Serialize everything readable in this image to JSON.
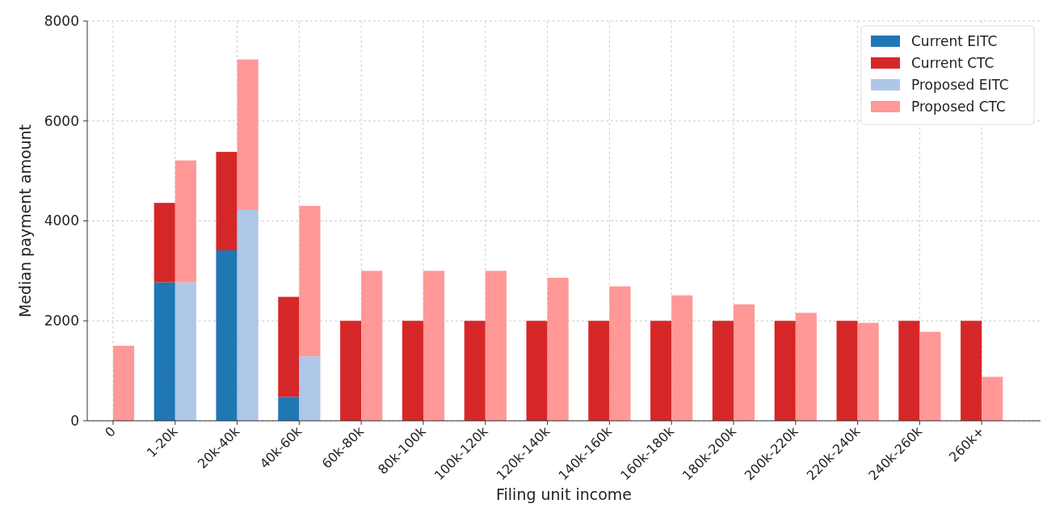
{
  "chart_data": {
    "type": "bar",
    "xlabel": "Filing unit income",
    "ylabel": "Median payment amount",
    "categories": [
      "0",
      "1-20k",
      "20k-40k",
      "40k-60k",
      "60k-80k",
      "80k-100k",
      "100k-120k",
      "120k-140k",
      "140k-160k",
      "160k-180k",
      "180k-200k",
      "200k-220k",
      "220k-240k",
      "240k-260k",
      "260k+"
    ],
    "series": [
      {
        "name": "Current EITC",
        "color": "#1f77b4",
        "values": [
          null,
          2770,
          3410,
          480,
          null,
          null,
          null,
          null,
          null,
          null,
          null,
          null,
          null,
          null,
          null
        ]
      },
      {
        "name": "Current CTC",
        "color": "#d62728",
        "base": [
          null,
          2770,
          3410,
          480,
          0,
          0,
          0,
          0,
          0,
          0,
          0,
          0,
          0,
          0,
          0
        ],
        "values": [
          null,
          1590,
          1970,
          2000,
          2000,
          2000,
          2000,
          2000,
          2000,
          2000,
          2000,
          2000,
          2000,
          2000,
          2000
        ]
      },
      {
        "name": "Proposed EITC",
        "color": "#aec7e8",
        "values": [
          null,
          2770,
          4220,
          1290,
          null,
          null,
          null,
          null,
          null,
          null,
          null,
          null,
          null,
          null,
          null
        ]
      },
      {
        "name": "Proposed CTC",
        "color": "#ff9896",
        "base": [
          0,
          2770,
          4220,
          1290,
          0,
          0,
          0,
          0,
          0,
          0,
          0,
          0,
          0,
          0,
          0
        ],
        "values": [
          1500,
          2440,
          3010,
          3010,
          3000,
          3000,
          3000,
          2860,
          2690,
          2510,
          2330,
          2160,
          1960,
          1780,
          880
        ]
      }
    ],
    "ylim": [
      0,
      8000
    ],
    "yticks": [
      0,
      2000,
      4000,
      6000,
      8000
    ],
    "grid": true,
    "legend": "top right"
  }
}
